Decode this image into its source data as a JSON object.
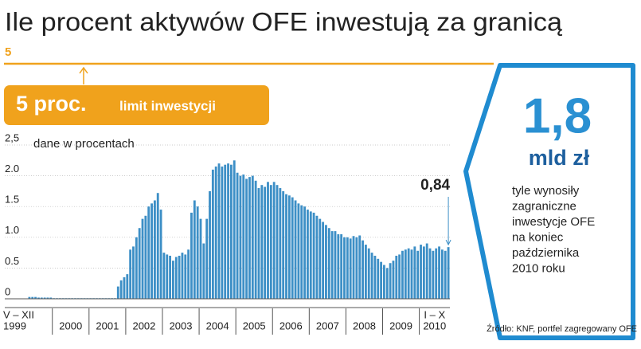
{
  "chart_data": {
    "type": "bar",
    "title": "Ile procent aktywów OFE inwestują za granicą",
    "limit_value": 5,
    "limit_label": "5 proc.",
    "limit_text": "limit inwestycji",
    "y_label": "dane w procentach",
    "color": "#3d8fc6",
    "limit_color": "#f0a21c",
    "ylim": [
      0,
      2.5
    ],
    "yticks": [
      0,
      0.5,
      {
        "value": 1.0,
        "label": "1.0"
      },
      1.5,
      {
        "value": 2.0,
        "label": "2.0"
      },
      {
        "value": 2.5,
        "label": "2,5"
      }
    ],
    "grid": true,
    "categories": [
      [
        "V – XII",
        "1999"
      ],
      [
        "2000"
      ],
      [
        "2001"
      ],
      [
        "2002"
      ],
      [
        "2003"
      ],
      [
        "2004"
      ],
      [
        "2005"
      ],
      [
        "2006"
      ],
      [
        "2007"
      ],
      [
        "2008"
      ],
      [
        "2009"
      ],
      [
        "I – X",
        "2010"
      ]
    ],
    "values": [
      [
        0.03,
        0.03,
        0.03,
        0.02,
        0.02,
        0.02,
        0.02,
        0.02
      ],
      [
        0.01,
        0.01,
        0.01,
        0.01,
        0.01,
        0.01,
        0.01,
        0.01,
        0.01,
        0.01,
        0.01,
        0.01
      ],
      [
        0.01,
        0.01,
        0.01,
        0.01,
        0.01,
        0.01,
        0.01,
        0.01,
        0.01,
        0.2,
        0.3,
        0.35
      ],
      [
        0.4,
        0.8,
        0.85,
        1.0,
        1.15,
        1.3,
        1.35,
        1.5,
        1.55,
        1.6,
        1.72,
        1.45
      ],
      [
        0.75,
        0.72,
        0.7,
        0.62,
        0.68,
        0.7,
        0.75,
        0.72,
        0.8,
        1.4,
        1.6,
        1.5
      ],
      [
        1.3,
        0.9,
        1.3,
        1.75,
        2.1,
        2.15,
        2.2,
        2.15,
        2.18,
        2.2,
        2.18,
        2.25
      ],
      [
        2.05,
        2.0,
        2.02,
        1.95,
        1.98,
        2.0,
        1.92,
        1.8,
        1.85,
        1.82,
        1.9,
        1.85
      ],
      [
        1.9,
        1.85,
        1.8,
        1.75,
        1.7,
        1.68,
        1.65,
        1.6,
        1.55,
        1.52,
        1.5,
        1.45
      ],
      [
        1.42,
        1.4,
        1.35,
        1.3,
        1.25,
        1.2,
        1.15,
        1.1,
        1.1,
        1.05,
        1.05,
        1.0
      ],
      [
        1.0,
        0.98,
        1.02,
        1.0,
        1.03,
        0.95,
        0.88,
        0.82,
        0.75,
        0.7,
        0.65,
        0.6
      ],
      [
        0.55,
        0.5,
        0.58,
        0.62,
        0.7,
        0.72,
        0.78,
        0.8,
        0.82,
        0.8,
        0.85,
        0.78
      ],
      [
        0.88,
        0.85,
        0.9,
        0.82,
        0.78,
        0.82,
        0.85,
        0.8,
        0.78,
        0.84
      ]
    ],
    "last_label": "0,84",
    "panel": {
      "big": "1,8",
      "unit": "mld zł",
      "lines": [
        "tyle wynosiły",
        "zagraniczne",
        "inwestycje OFE",
        "na koniec",
        "października",
        "2010 roku"
      ]
    },
    "source": "Źródło: KNF, portfel zagregowany OFE"
  }
}
